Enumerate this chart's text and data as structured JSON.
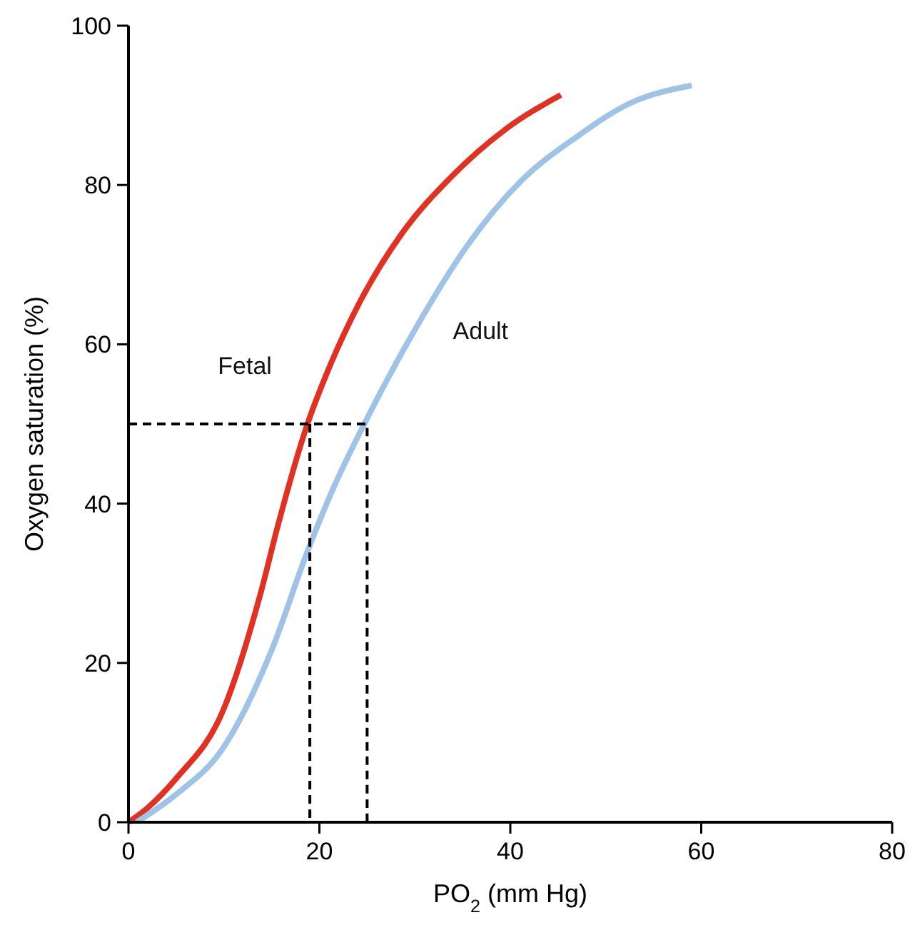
{
  "chart_data": {
    "type": "line",
    "xlabel": "PO$_{2}$ (mm Hg)",
    "ylabel": "Oxygen saturation (%)",
    "xlim": [
      0,
      80
    ],
    "xticks": [
      0,
      20,
      40,
      60,
      80
    ],
    "ylim": [
      0,
      100
    ],
    "yticks": [
      0,
      20,
      40,
      60,
      80,
      100
    ],
    "grid": false,
    "legend": false,
    "marker": "none",
    "series": [
      {
        "name": "Fetal",
        "color": "#e03123",
        "line_style": "solid",
        "x": [
          0,
          2,
          5,
          9.9,
          13.9,
          15.6,
          18.75,
          21,
          24.1,
          28.7,
          33.8,
          39.5,
          45.3
        ],
        "values": [
          0,
          1.8,
          5.5,
          14,
          29,
          37,
          50,
          57,
          65,
          74,
          81,
          87,
          91.3
        ]
      },
      {
        "name": "Adult",
        "color": "#9fc2e7",
        "line_style": "solid",
        "x": [
          0.85,
          5,
          9.9,
          15,
          18.75,
          21.3,
          24.7,
          29.8,
          35.5,
          41.2,
          46.9,
          52.6,
          59
        ],
        "values": [
          0,
          3.5,
          9.3,
          21.6,
          34,
          41.5,
          50,
          61.4,
          72.4,
          80.6,
          86,
          90.3,
          92.5
        ]
      },
      {
        "color": "#000000",
        "line_style": "dashed",
        "x": [
          0,
          25,
          25
        ],
        "values": [
          50,
          50,
          0
        ]
      },
      {
        "color": "#000000",
        "line_style": "dashed",
        "x": [
          19,
          19
        ],
        "values": [
          50,
          0
        ]
      }
    ]
  }
}
